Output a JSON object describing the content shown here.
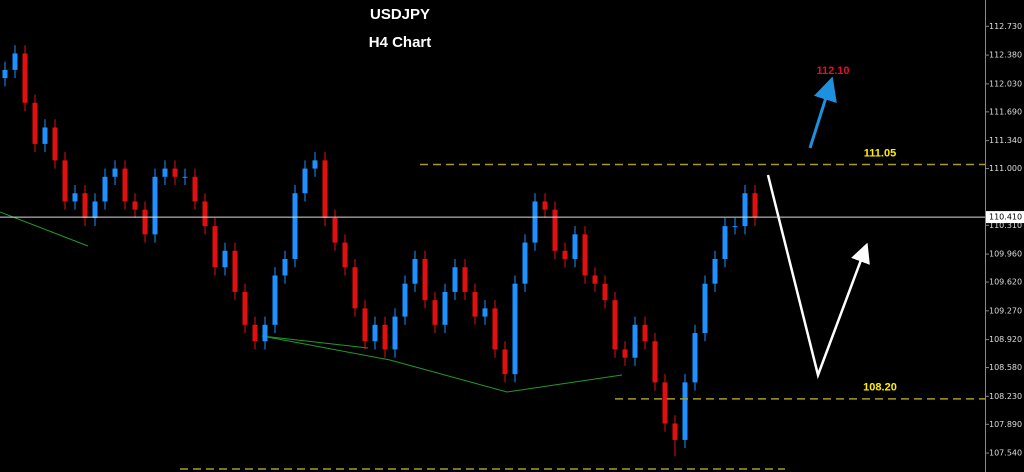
{
  "chart_data": {
    "type": "candlestick",
    "title": "USDJPY",
    "subtitle": "H4 Chart",
    "ylim": [
      107.31,
      113.05
    ],
    "yticks": [
      {
        "value": 112.73,
        "label": "112.730"
      },
      {
        "value": 112.38,
        "label": "112.380"
      },
      {
        "value": 112.03,
        "label": "112.030"
      },
      {
        "value": 111.69,
        "label": "111.690"
      },
      {
        "value": 111.34,
        "label": "111.340"
      },
      {
        "value": 111.0,
        "label": "111.000"
      },
      {
        "value": 110.31,
        "label": "110.310"
      },
      {
        "value": 109.96,
        "label": "109.960"
      },
      {
        "value": 109.62,
        "label": "109.620"
      },
      {
        "value": 109.27,
        "label": "109.270"
      },
      {
        "value": 108.92,
        "label": "108.920"
      },
      {
        "value": 108.58,
        "label": "108.580"
      },
      {
        "value": 108.23,
        "label": "108.230"
      },
      {
        "value": 107.89,
        "label": "107.890"
      },
      {
        "value": 107.54,
        "label": "107.540"
      }
    ],
    "up_color": "#1e90ff",
    "down_color": "#e01010",
    "open": [
      112.1,
      112.2,
      112.4,
      111.8,
      111.3,
      111.5,
      111.1,
      110.6,
      110.7,
      110.4,
      110.6,
      110.9,
      111.0,
      110.6,
      110.5,
      110.2,
      110.9,
      111.0,
      110.9,
      110.9,
      110.6,
      110.3,
      109.8,
      110.0,
      109.5,
      109.1,
      108.9,
      109.1,
      109.7,
      109.9,
      110.7,
      111.0,
      111.1,
      110.4,
      110.1,
      109.8,
      109.3,
      108.9,
      109.1,
      108.8,
      109.2,
      109.6,
      109.9,
      109.4,
      109.1,
      109.5,
      109.8,
      109.5,
      109.2,
      109.3,
      108.8,
      108.5,
      109.6,
      110.1,
      110.6,
      110.5,
      110.0,
      109.9,
      110.2,
      109.7,
      109.6,
      109.4,
      108.8,
      108.7,
      109.1,
      108.9,
      108.4,
      107.9,
      107.7,
      108.4,
      109.0,
      109.6,
      109.9,
      110.3,
      110.3,
      110.7
    ],
    "high": [
      112.3,
      112.5,
      112.5,
      111.9,
      111.6,
      111.6,
      111.2,
      110.8,
      110.8,
      110.7,
      111.0,
      111.1,
      111.1,
      110.7,
      110.6,
      111.0,
      111.1,
      111.1,
      111.0,
      111.0,
      110.7,
      110.4,
      110.1,
      110.1,
      109.6,
      109.2,
      109.2,
      109.8,
      110.0,
      110.8,
      111.1,
      111.2,
      111.2,
      110.5,
      110.2,
      109.9,
      109.4,
      109.2,
      109.2,
      109.3,
      109.7,
      110.0,
      110.0,
      109.5,
      109.6,
      109.9,
      109.9,
      109.6,
      109.4,
      109.4,
      108.9,
      109.7,
      110.2,
      110.7,
      110.7,
      110.6,
      110.1,
      110.3,
      110.3,
      109.8,
      109.7,
      109.5,
      108.9,
      109.2,
      109.2,
      109.0,
      108.5,
      108.0,
      108.5,
      109.1,
      109.7,
      110.0,
      110.4,
      110.4,
      110.8,
      110.8
    ],
    "low": [
      112.0,
      112.1,
      111.7,
      111.2,
      111.2,
      111.0,
      110.5,
      110.5,
      110.3,
      110.3,
      110.5,
      110.8,
      110.5,
      110.4,
      110.1,
      110.1,
      110.8,
      110.8,
      110.8,
      110.5,
      110.2,
      109.7,
      109.7,
      109.4,
      109.0,
      108.8,
      108.8,
      109.0,
      109.6,
      109.8,
      110.6,
      110.9,
      110.3,
      110.0,
      109.7,
      109.2,
      108.8,
      108.8,
      108.7,
      108.7,
      109.1,
      109.5,
      109.3,
      109.0,
      109.0,
      109.4,
      109.4,
      109.1,
      109.1,
      108.7,
      108.4,
      108.4,
      109.5,
      110.0,
      110.4,
      109.9,
      109.8,
      109.8,
      109.6,
      109.5,
      109.3,
      108.7,
      108.6,
      108.6,
      108.8,
      108.3,
      107.8,
      107.5,
      107.6,
      108.3,
      108.9,
      109.5,
      109.8,
      110.2,
      110.2,
      110.3
    ],
    "close": [
      112.2,
      112.4,
      111.8,
      111.3,
      111.5,
      111.1,
      110.6,
      110.7,
      110.4,
      110.6,
      110.9,
      111.0,
      110.6,
      110.5,
      110.2,
      110.9,
      111.0,
      110.9,
      110.9,
      110.6,
      110.3,
      109.8,
      110.0,
      109.5,
      109.1,
      108.9,
      109.1,
      109.7,
      109.9,
      110.7,
      111.0,
      111.1,
      110.4,
      110.1,
      109.8,
      109.3,
      108.9,
      109.1,
      108.8,
      109.2,
      109.6,
      109.9,
      109.4,
      109.1,
      109.5,
      109.8,
      109.5,
      109.2,
      109.3,
      108.8,
      108.5,
      109.6,
      110.1,
      110.6,
      110.5,
      110.0,
      109.9,
      110.2,
      109.7,
      109.6,
      109.4,
      108.8,
      108.7,
      109.1,
      108.9,
      108.4,
      107.9,
      107.7,
      108.4,
      109.0,
      109.6,
      109.9,
      110.3,
      110.3,
      110.7,
      110.41
    ],
    "current_price": {
      "value": 110.41,
      "label": "110.410"
    },
    "levels": [
      {
        "value": 111.05,
        "label": "111.05",
        "color": "#a89a2a",
        "label_color": "#ffee00"
      },
      {
        "value": 108.2,
        "label": "108.20",
        "color": "#a89a2a",
        "label_color": "#ffee00"
      }
    ],
    "target": {
      "value": 112.1,
      "label": "112.10",
      "color": "#e0102a"
    }
  }
}
